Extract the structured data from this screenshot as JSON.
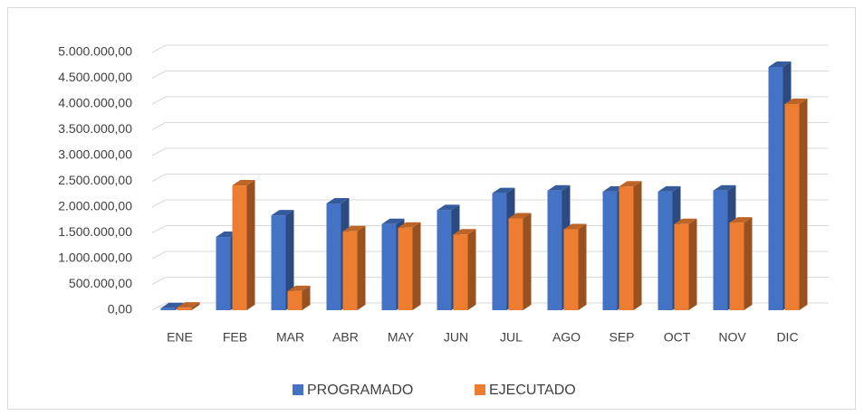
{
  "chart_data": {
    "type": "bar3d",
    "categories": [
      "ENE",
      "FEB",
      "MAR",
      "ABR",
      "MAY",
      "JUN",
      "JUL",
      "AGO",
      "SEP",
      "OCT",
      "NOV",
      "DIC"
    ],
    "series": [
      {
        "name": "PROGRAMADO",
        "color": "#4472c4",
        "values": [
          40000,
          1420000,
          1840000,
          2070000,
          1670000,
          1940000,
          2270000,
          2320000,
          2300000,
          2300000,
          2320000,
          4720000
        ]
      },
      {
        "name": "EJECUTADO",
        "color": "#ed7d31",
        "values": [
          50000,
          2420000,
          370000,
          1530000,
          1600000,
          1470000,
          1780000,
          1570000,
          2400000,
          1670000,
          1700000,
          4000000
        ]
      }
    ],
    "ylim": [
      0,
      5000000
    ],
    "yticks": [
      {
        "value": 0,
        "label": "0,00"
      },
      {
        "value": 500000,
        "label": "500.000,00"
      },
      {
        "value": 1000000,
        "label": "1.000.000,00"
      },
      {
        "value": 1500000,
        "label": "1.500.000,00"
      },
      {
        "value": 2000000,
        "label": "2.000.000,00"
      },
      {
        "value": 2500000,
        "label": "2.500.000,00"
      },
      {
        "value": 3000000,
        "label": "3.000.000,00"
      },
      {
        "value": 3500000,
        "label": "3.500.000,00"
      },
      {
        "value": 4000000,
        "label": "4.000.000,00"
      },
      {
        "value": 4500000,
        "label": "4.500.000,00"
      },
      {
        "value": 5000000,
        "label": "5.000.000,00"
      }
    ],
    "grid": true,
    "legend": "bottom"
  }
}
